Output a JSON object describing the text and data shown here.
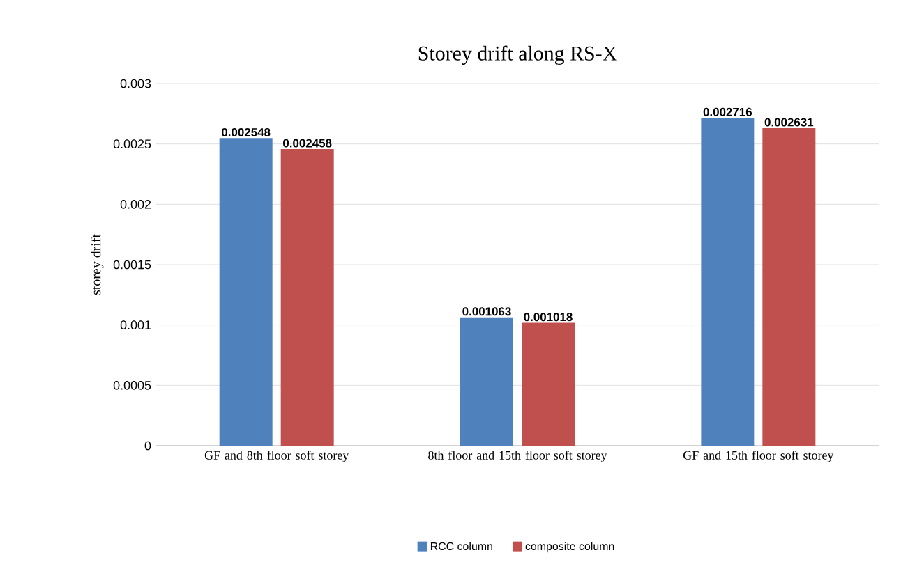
{
  "chart_data": {
    "type": "bar",
    "title": "Storey drift along RS-X",
    "ylabel": "storey drift",
    "categories": [
      "GF and 8th floor soft storey",
      "8th floor and 15th floor soft storey",
      "GF and 15th floor soft storey"
    ],
    "series": [
      {
        "name": "RCC column",
        "color": "#4f81bd",
        "values": [
          0.002548,
          0.001063,
          0.002716
        ]
      },
      {
        "name": "composite column",
        "color": "#c0504d",
        "values": [
          0.002458,
          0.001018,
          0.002631
        ]
      }
    ],
    "ylim": [
      0,
      0.003
    ],
    "yticks": [
      0,
      0.0005,
      0.001,
      0.0015,
      0.002,
      0.0025,
      0.003
    ],
    "grid": "y",
    "legend": "bottom",
    "data_labels": true
  }
}
